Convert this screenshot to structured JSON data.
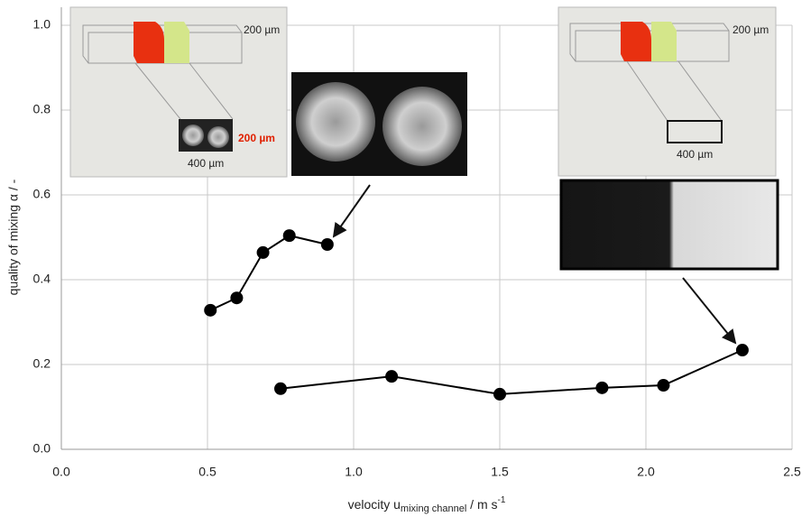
{
  "chart_data": {
    "type": "line",
    "y_label": "quality of mixing α / -",
    "x_label": {
      "main": "velocity u",
      "sub": "mixing channel",
      "unit": " / m s",
      "sup": "-1"
    },
    "series": [
      {
        "x": [
          0.51,
          0.6,
          0.69,
          0.78,
          0.91
        ],
        "values": [
          0.328,
          0.357,
          0.464,
          0.504,
          0.483
        ],
        "color": "#000000"
      },
      {
        "x": [
          0.75,
          1.13,
          1.5,
          1.85,
          2.06,
          2.33
        ],
        "values": [
          0.143,
          0.172,
          0.13,
          0.145,
          0.151,
          0.234
        ],
        "color": "#000000"
      }
    ],
    "xlim": [
      0,
      2.5
    ],
    "xticks": [
      {
        "value": 0,
        "label": "0.0"
      },
      0.5,
      {
        "value": 1,
        "label": "1.0"
      },
      1.5,
      {
        "value": 2,
        "label": "2.0"
      },
      2.5
    ],
    "ylim": [
      0,
      1
    ],
    "yticks": [
      {
        "value": 0,
        "label": "0.0"
      },
      0.2,
      0.4,
      0.6,
      0.8,
      {
        "value": 1,
        "label": "1.0"
      }
    ],
    "grid": true,
    "annotations": {
      "left_inset_height": "200 µm",
      "left_inset_channel_height": "200 µm",
      "left_inset_width": "400 µm",
      "right_inset_height": "200 µm",
      "right_inset_width": "400 µm"
    }
  }
}
